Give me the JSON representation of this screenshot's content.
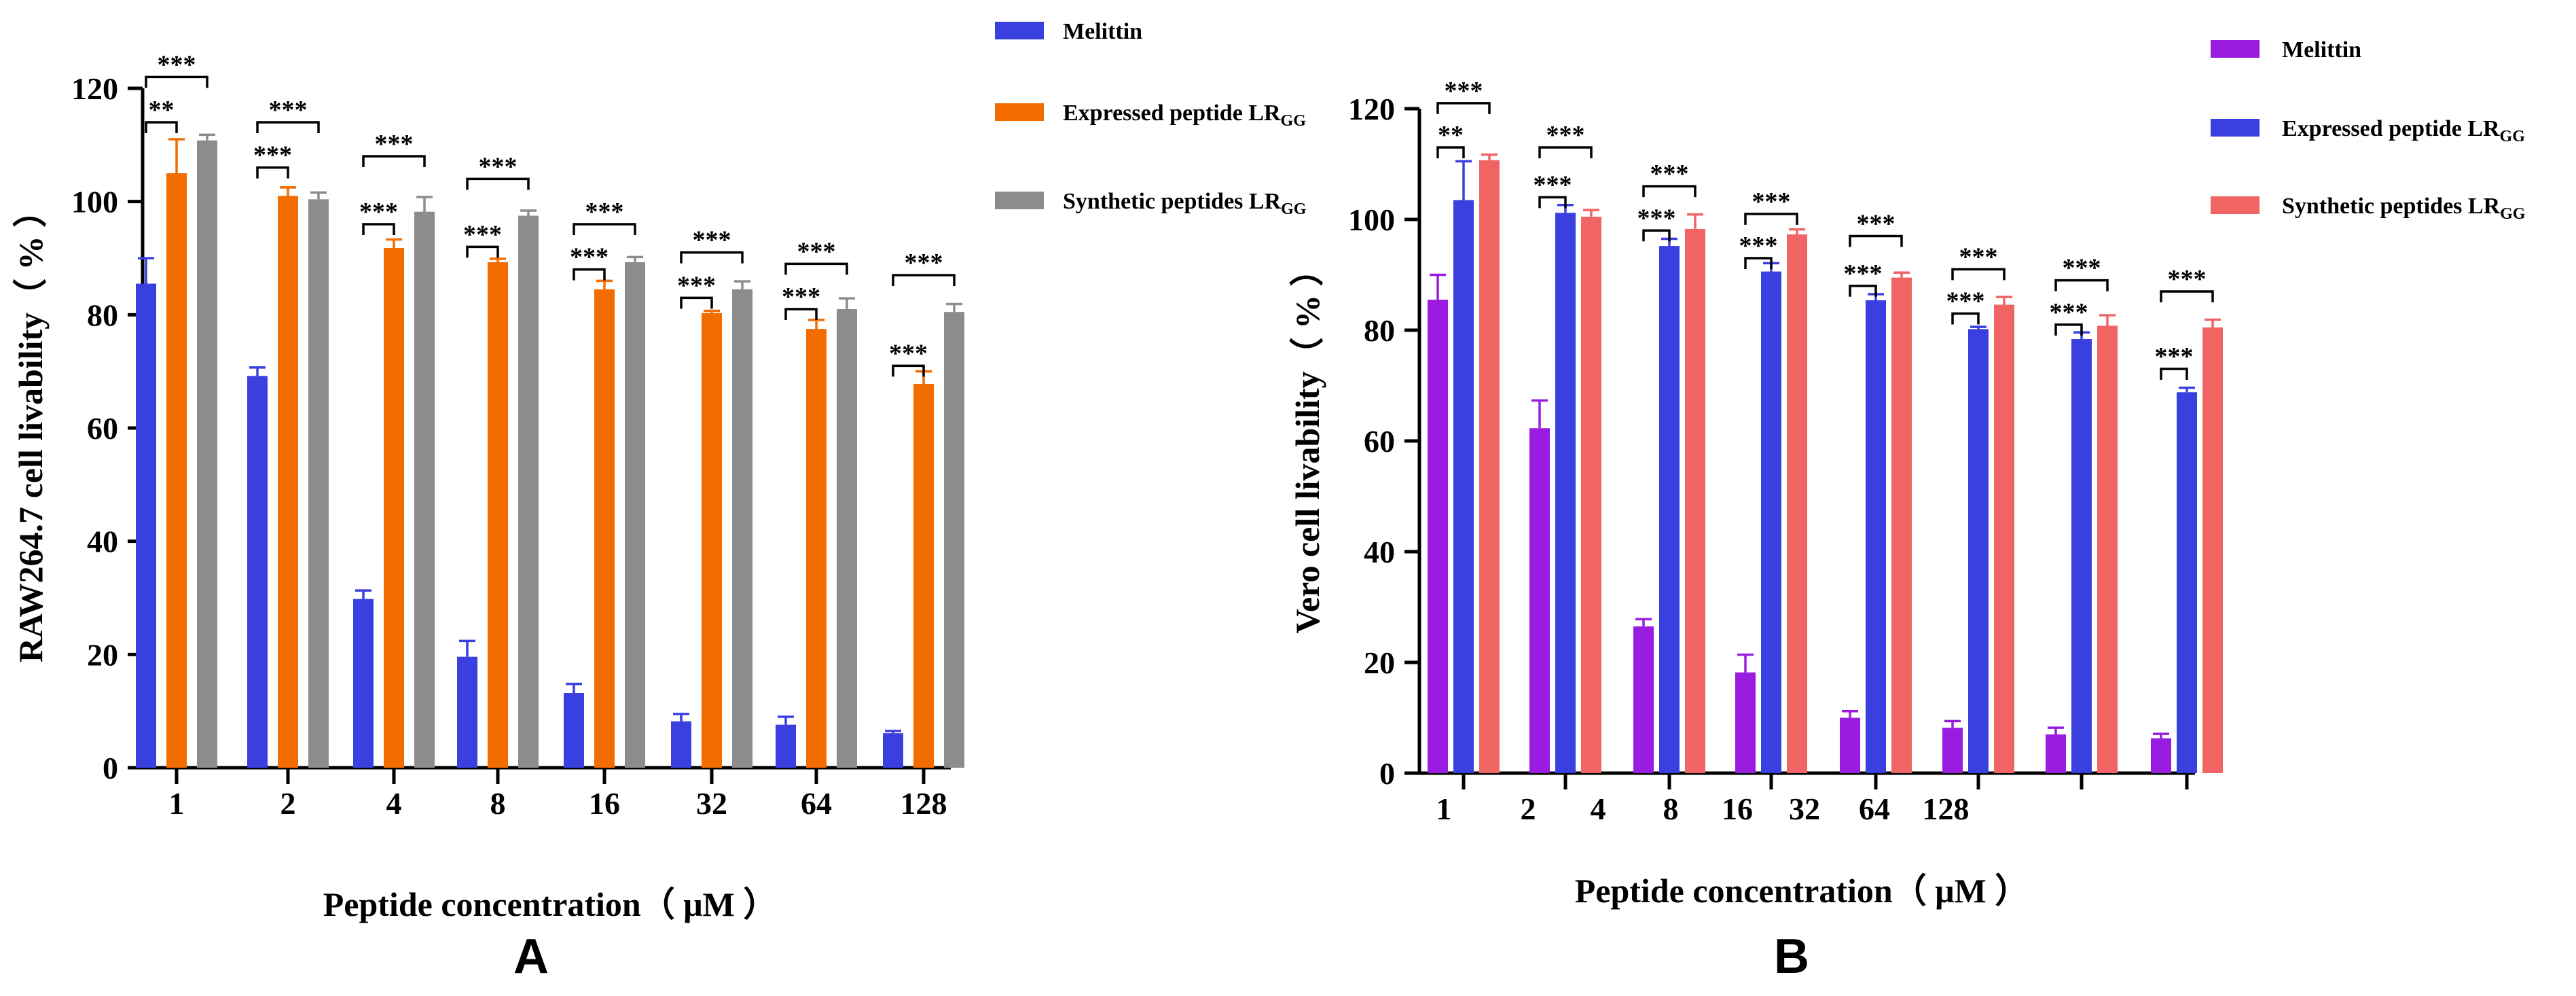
{
  "figure": {
    "panel_labels": [
      "A",
      "B"
    ]
  },
  "chart_data": [
    {
      "type": "bar",
      "panel": "A",
      "xlabel": "Peptide concentration（ μM ）",
      "ylabel": "RAW264.7 cell livability（   %   ）",
      "ylim": [
        0,
        120
      ],
      "yticks": [
        "0",
        "20",
        "40",
        "60",
        "80",
        "100",
        "120"
      ],
      "categories": [
        "1",
        "2",
        "4",
        "8",
        "16",
        "32",
        "64",
        "128"
      ],
      "legend_placement": "top-right",
      "legend": [
        {
          "label": "Melittin",
          "sub": ""
        },
        {
          "label": "Expressed peptide LR",
          "sub": "GG"
        },
        {
          "label": "Synthetic peptides LR",
          "sub": "GG"
        }
      ],
      "colors": [
        "#3a3fe0",
        "#f26c00",
        "#8c8c8c"
      ],
      "series": [
        {
          "values": [
            85.5,
            69.2,
            29.8,
            19.6,
            13.2,
            8.2,
            7.6,
            6.1
          ],
          "errors": [
            4.5,
            1.5,
            1.5,
            2.8,
            1.6,
            1.3,
            1.4,
            0.4
          ]
        },
        {
          "values": [
            105,
            101,
            91.8,
            89.3,
            84.5,
            80.3,
            77.5,
            67.8
          ],
          "errors": [
            6,
            1.5,
            1.5,
            0.6,
            1.5,
            0.4,
            1.6,
            2.2
          ]
        },
        {
          "values": [
            110.8,
            100.4,
            98.2,
            97.5,
            89.3,
            84.5,
            81,
            80.5
          ],
          "errors": [
            1,
            1.2,
            2.6,
            0.9,
            0.9,
            1.4,
            1.9,
            1.4
          ]
        }
      ],
      "significance": [
        {
          "group": 0,
          "from": 0,
          "to": 1,
          "label": "**",
          "y": 114
        },
        {
          "group": 0,
          "from": 0,
          "to": 2,
          "label": "***",
          "y": 122
        },
        {
          "group": 1,
          "from": 0,
          "to": 1,
          "label": "***",
          "y": 106
        },
        {
          "group": 1,
          "from": 0,
          "to": 2,
          "label": "***",
          "y": 114
        },
        {
          "group": 2,
          "from": 0,
          "to": 1,
          "label": "***",
          "y": 96
        },
        {
          "group": 2,
          "from": 0,
          "to": 2,
          "label": "***",
          "y": 108
        },
        {
          "group": 3,
          "from": 0,
          "to": 1,
          "label": "***",
          "y": 92
        },
        {
          "group": 3,
          "from": 0,
          "to": 2,
          "label": "***",
          "y": 104
        },
        {
          "group": 4,
          "from": 0,
          "to": 1,
          "label": "***",
          "y": 88
        },
        {
          "group": 4,
          "from": 0,
          "to": 2,
          "label": "***",
          "y": 96
        },
        {
          "group": 5,
          "from": 0,
          "to": 1,
          "label": "***",
          "y": 83
        },
        {
          "group": 5,
          "from": 0,
          "to": 2,
          "label": "***",
          "y": 91
        },
        {
          "group": 6,
          "from": 0,
          "to": 1,
          "label": "***",
          "y": 81
        },
        {
          "group": 6,
          "from": 0,
          "to": 2,
          "label": "***",
          "y": 89
        },
        {
          "group": 7,
          "from": 0,
          "to": 1,
          "label": "***",
          "y": 71
        },
        {
          "group": 7,
          "from": 0,
          "to": 2,
          "label": "***",
          "y": 87
        }
      ]
    },
    {
      "type": "bar",
      "panel": "B",
      "xlabel": "Peptide concentration（ μM ）",
      "ylabel": "Vero cell livability（   %   ）",
      "ylim": [
        0,
        120
      ],
      "yticks": [
        "0",
        "20",
        "40",
        "60",
        "80",
        "100",
        "120"
      ],
      "categories": [
        "1",
        "2",
        "4",
        "8",
        "16",
        "32",
        "64",
        "128"
      ],
      "legend_placement": "top-right",
      "legend": [
        {
          "label": "Melittin",
          "sub": ""
        },
        {
          "label": "Expressed peptide LR",
          "sub": "GG"
        },
        {
          "label": "Synthetic peptides LR",
          "sub": "GG"
        }
      ],
      "colors": [
        "#9a1ce0",
        "#3a3fe0",
        "#f06464"
      ],
      "series": [
        {
          "values": [
            85.5,
            62.3,
            26.5,
            18.2,
            10,
            8.2,
            7,
            6.3
          ],
          "errors": [
            4.5,
            5,
            1.3,
            3.2,
            1.2,
            1.2,
            1.2,
            0.8
          ]
        },
        {
          "values": [
            103.5,
            101.2,
            95.2,
            90.6,
            85.4,
            80.2,
            78.4,
            68.8
          ],
          "errors": [
            7,
            1.4,
            1.3,
            1.5,
            1.1,
            0.4,
            1.2,
            0.8
          ]
        },
        {
          "values": [
            110.7,
            100.5,
            98.3,
            97.3,
            89.5,
            84.6,
            80.8,
            80.5
          ],
          "errors": [
            1,
            1.2,
            2.6,
            0.9,
            0.9,
            1.4,
            1.9,
            1.4
          ]
        }
      ],
      "significance": [
        {
          "group": 0,
          "from": 0,
          "to": 1,
          "label": "**",
          "y": 113
        },
        {
          "group": 0,
          "from": 0,
          "to": 2,
          "label": "***",
          "y": 121
        },
        {
          "group": 1,
          "from": 0,
          "to": 1,
          "label": "***",
          "y": 104
        },
        {
          "group": 1,
          "from": 0,
          "to": 2,
          "label": "***",
          "y": 113
        },
        {
          "group": 2,
          "from": 0,
          "to": 1,
          "label": "***",
          "y": 98
        },
        {
          "group": 2,
          "from": 0,
          "to": 2,
          "label": "***",
          "y": 106
        },
        {
          "group": 3,
          "from": 0,
          "to": 1,
          "label": "***",
          "y": 93
        },
        {
          "group": 3,
          "from": 0,
          "to": 2,
          "label": "***",
          "y": 101
        },
        {
          "group": 4,
          "from": 0,
          "to": 1,
          "label": "***",
          "y": 88
        },
        {
          "group": 4,
          "from": 0,
          "to": 2,
          "label": "***",
          "y": 97
        },
        {
          "group": 5,
          "from": 0,
          "to": 1,
          "label": "***",
          "y": 83
        },
        {
          "group": 5,
          "from": 0,
          "to": 2,
          "label": "***",
          "y": 91
        },
        {
          "group": 6,
          "from": 0,
          "to": 1,
          "label": "***",
          "y": 81
        },
        {
          "group": 6,
          "from": 0,
          "to": 2,
          "label": "***",
          "y": 89
        },
        {
          "group": 7,
          "from": 0,
          "to": 1,
          "label": "***",
          "y": 73
        },
        {
          "group": 7,
          "from": 0,
          "to": 2,
          "label": "***",
          "y": 87
        }
      ]
    }
  ]
}
